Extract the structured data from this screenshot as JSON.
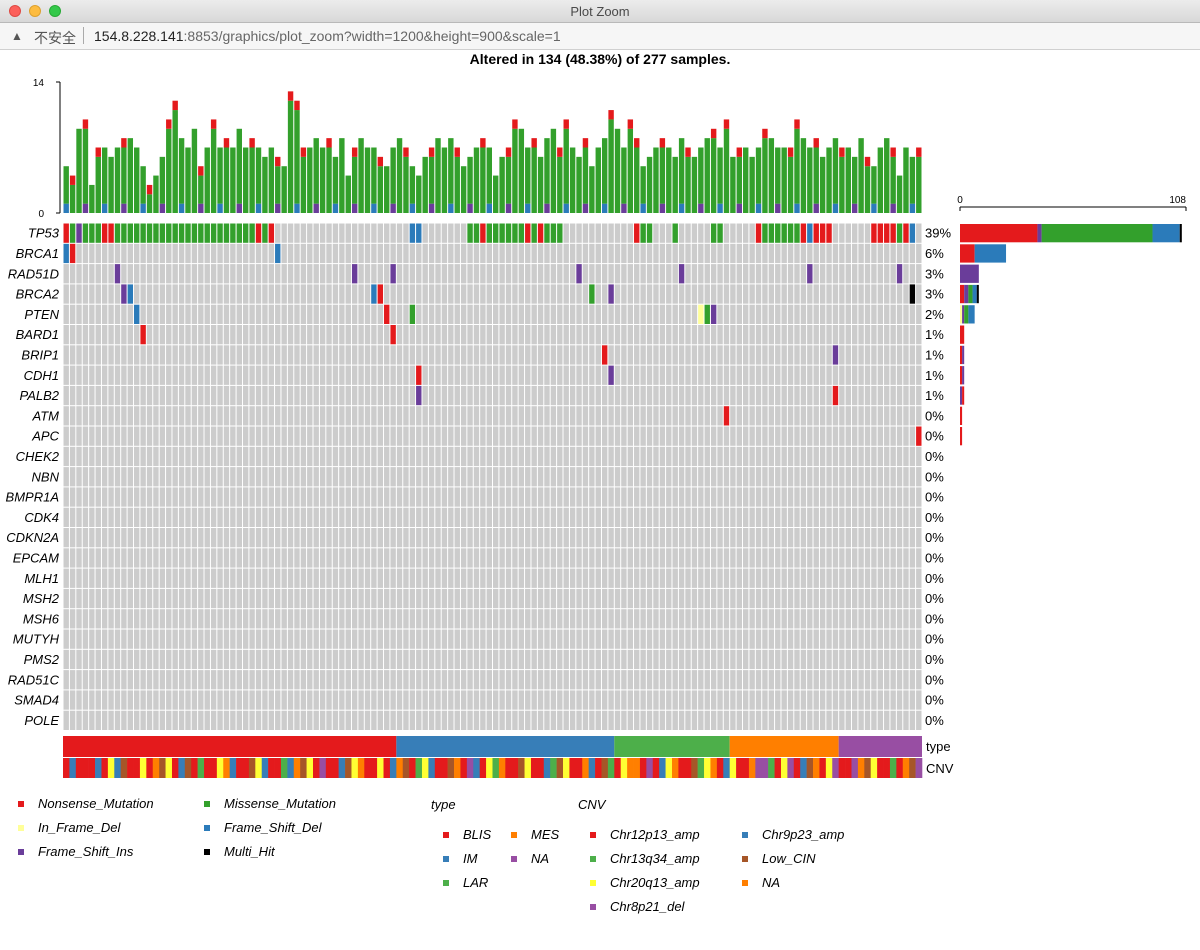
{
  "window": {
    "title": "Plot Zoom"
  },
  "address_bar": {
    "security_label": "不安全",
    "host": "154.8.228.141",
    "path": ":8853/graphics/plot_zoom?width=1200&height=900&scale=1"
  },
  "chart_data": {
    "type": "heatmap",
    "title": "Altered in 134 (48.38%) of 277 samples.",
    "top_axis": {
      "min": 0,
      "max": 14,
      "ticks": [
        "0",
        "14"
      ]
    },
    "right_axis": {
      "min": 0,
      "max": 108,
      "ticks": [
        "0",
        "108"
      ]
    },
    "n_columns": 134,
    "classes": [
      "Nonsense_Mutation",
      "Missense_Mutation",
      "In_Frame_Del",
      "Frame_Shift_Del",
      "Frame_Shift_Ins",
      "Multi_Hit"
    ],
    "colors": {
      "Nonsense_Mutation": "#e41a1c",
      "Missense_Mutation": "#33a02c",
      "In_Frame_Del": "#ffff99",
      "Frame_Shift_Del": "#2b7bba",
      "Frame_Shift_Ins": "#6a3d9a",
      "Multi_Hit": "#000000",
      "none": "#cccccc"
    },
    "genes": [
      {
        "name": "TP53",
        "pct": "39%",
        "cells": "NMMSMMMMMMMNNNMMMMMNMNMMMMMMMMMMMMMMMMMMMMMMMMMMMMMMNMNNMMNM.......................................DD.............MMNMNNHMMMMMMMMMMSNMMNMMNMMMM....................N.MMM.....NM..........MMM.........NNMMMMMMMMMMMMNDNNNNDNN..........NNMNNDNNMNNNDD..",
        "bar": [
          {
            "cls": "Nonsense_Mutation",
            "value": 37
          },
          {
            "cls": "Frame_Shift_Ins",
            "value": 2
          },
          {
            "cls": "Missense_Mutation",
            "value": 53
          },
          {
            "cls": "Frame_Shift_Del",
            "value": 13
          },
          {
            "cls": "Multi_Hit",
            "value": 1
          }
        ]
      },
      {
        "name": "BRCA1",
        "pct": "6%",
        "cells": "DDDDDDDNNNDD.......................................DD..............................D.........................................................................................................................................................DD.........................NN..........................................................................................................................................................................................................................................................................................................................................................................................................................................................................................................................................................................................................................................................................................................................D",
        "bar": [
          {
            "cls": "Nonsense_Mutation",
            "value": 7
          },
          {
            "cls": "Frame_Shift_Del",
            "value": 15
          }
        ]
      },
      {
        "name": "RAD51D",
        "pct": "3%",
        "cells": "",
        "bar": [
          {
            "cls": "Frame_Shift_Ins",
            "value": 9
          }
        ]
      },
      {
        "name": "BRCA2",
        "pct": "3%",
        "cells": "",
        "bar": [
          {
            "cls": "Nonsense_Mutation",
            "value": 2
          },
          {
            "cls": "Frame_Shift_Ins",
            "value": 2
          },
          {
            "cls": "Missense_Mutation",
            "value": 2
          },
          {
            "cls": "Frame_Shift_Del",
            "value": 2
          },
          {
            "cls": "Multi_Hit",
            "value": 1
          }
        ]
      },
      {
        "name": "PTEN",
        "pct": "2%",
        "cells": "",
        "bar": [
          {
            "cls": "In_Frame_Del",
            "value": 1
          },
          {
            "cls": "Frame_Shift_Ins",
            "value": 1
          },
          {
            "cls": "Missense_Mutation",
            "value": 2
          },
          {
            "cls": "Frame_Shift_Del",
            "value": 3
          }
        ]
      },
      {
        "name": "BARD1",
        "pct": "1%",
        "cells": "",
        "bar": [
          {
            "cls": "Nonsense_Mutation",
            "value": 2
          }
        ]
      },
      {
        "name": "BRIP1",
        "pct": "1%",
        "cells": "",
        "bar": [
          {
            "cls": "Nonsense_Mutation",
            "value": 1
          },
          {
            "cls": "Frame_Shift_Ins",
            "value": 1
          }
        ]
      },
      {
        "name": "CDH1",
        "pct": "1%",
        "cells": "",
        "bar": [
          {
            "cls": "Nonsense_Mutation",
            "value": 1
          },
          {
            "cls": "Frame_Shift_Ins",
            "value": 1
          }
        ]
      },
      {
        "name": "PALB2",
        "pct": "1%",
        "cells": "",
        "bar": [
          {
            "cls": "Frame_Shift_Ins",
            "value": 1
          },
          {
            "cls": "Nonsense_Mutation",
            "value": 1
          }
        ]
      },
      {
        "name": "ATM",
        "pct": "0%",
        "cells": "",
        "bar": [
          {
            "cls": "Nonsense_Mutation",
            "value": 1
          }
        ]
      },
      {
        "name": "APC",
        "pct": "0%",
        "cells": "",
        "bar": [
          {
            "cls": "Nonsense_Mutation",
            "value": 1
          }
        ]
      },
      {
        "name": "CHEK2",
        "pct": "0%",
        "cells": "",
        "bar": []
      },
      {
        "name": "NBN",
        "pct": "0%",
        "cells": "",
        "bar": []
      },
      {
        "name": "BMPR1A",
        "pct": "0%",
        "cells": "",
        "bar": []
      },
      {
        "name": "CDK4",
        "pct": "0%",
        "cells": "",
        "bar": []
      },
      {
        "name": "CDKN2A",
        "pct": "0%",
        "cells": "",
        "bar": []
      },
      {
        "name": "EPCAM",
        "pct": "0%",
        "cells": "",
        "bar": []
      },
      {
        "name": "MLH1",
        "pct": "0%",
        "cells": "",
        "bar": []
      },
      {
        "name": "MSH2",
        "pct": "0%",
        "cells": "",
        "bar": []
      },
      {
        "name": "MSH6",
        "pct": "0%",
        "cells": "",
        "bar": []
      },
      {
        "name": "MUTYH",
        "pct": "0%",
        "cells": "",
        "bar": []
      },
      {
        "name": "PMS2",
        "pct": "0%",
        "cells": "",
        "bar": []
      },
      {
        "name": "RAD51C",
        "pct": "0%",
        "cells": "",
        "bar": []
      },
      {
        "name": "SMAD4",
        "pct": "0%",
        "cells": "",
        "bar": []
      },
      {
        "name": "POLE",
        "pct": "0%",
        "cells": "",
        "bar": []
      }
    ],
    "sparse_cells": [
      {
        "gene": "RAD51D",
        "cols": [
          8,
          45,
          51,
          80,
          96,
          116,
          130
        ],
        "cls": "Frame_Shift_Ins"
      },
      {
        "gene": "BRCA2",
        "cols": [
          9
        ],
        "cls": "Frame_Shift_Ins"
      },
      {
        "gene": "BRCA2",
        "cols": [
          10,
          48
        ],
        "cls": "Frame_Shift_Del"
      },
      {
        "gene": "BRCA2",
        "cols": [
          49
        ],
        "cls": "Nonsense_Mutation"
      },
      {
        "gene": "BRCA2",
        "cols": [
          82
        ],
        "cls": "Missense_Mutation"
      },
      {
        "gene": "BRCA2",
        "cols": [
          85
        ],
        "cls": "Frame_Shift_Ins"
      },
      {
        "gene": "BRCA2",
        "cols": [
          132
        ],
        "cls": "Multi_Hit"
      },
      {
        "gene": "PTEN",
        "cols": [
          11
        ],
        "cls": "Frame_Shift_Del"
      },
      {
        "gene": "PTEN",
        "cols": [
          50
        ],
        "cls": "Nonsense_Mutation"
      },
      {
        "gene": "PTEN",
        "cols": [
          54
        ],
        "cls": "Missense_Mutation"
      },
      {
        "gene": "PTEN",
        "cols": [
          99
        ],
        "cls": "In_Frame_Del"
      },
      {
        "gene": "PTEN",
        "cols": [
          100
        ],
        "cls": "Missense_Mutation"
      },
      {
        "gene": "PTEN",
        "cols": [
          101
        ],
        "cls": "Frame_Shift_Ins"
      },
      {
        "gene": "BARD1",
        "cols": [
          12,
          51
        ],
        "cls": "Nonsense_Mutation"
      },
      {
        "gene": "BRIP1",
        "cols": [
          84
        ],
        "cls": "Nonsense_Mutation"
      },
      {
        "gene": "BRIP1",
        "cols": [
          120
        ],
        "cls": "Frame_Shift_Ins"
      },
      {
        "gene": "CDH1",
        "cols": [
          55
        ],
        "cls": "Nonsense_Mutation"
      },
      {
        "gene": "CDH1",
        "cols": [
          85
        ],
        "cls": "Frame_Shift_Ins"
      },
      {
        "gene": "PALB2",
        "cols": [
          55
        ],
        "cls": "Frame_Shift_Ins"
      },
      {
        "gene": "PALB2",
        "cols": [
          120
        ],
        "cls": "Nonsense_Mutation"
      },
      {
        "gene": "ATM",
        "cols": [
          103
        ],
        "cls": "Nonsense_Mutation"
      },
      {
        "gene": "APC",
        "cols": [
          133
        ],
        "cls": "Nonsense_Mutation"
      }
    ],
    "top_bars_total": [
      5,
      4,
      9,
      10,
      3,
      7,
      7,
      6,
      7,
      8,
      8,
      7,
      5,
      3,
      4,
      6,
      10,
      12,
      8,
      7,
      9,
      5,
      7,
      10,
      7,
      8,
      7,
      9,
      7,
      8,
      7,
      6,
      7,
      6,
      5,
      13,
      12,
      7,
      7,
      8,
      7,
      8,
      6,
      8,
      4,
      7,
      8,
      7,
      7,
      6,
      5,
      7,
      8,
      7,
      5,
      4,
      6,
      7,
      8,
      7,
      8,
      7,
      5,
      6,
      7,
      8,
      7,
      4,
      6,
      7,
      10,
      9,
      7,
      8,
      6,
      8,
      9,
      7,
      10,
      7,
      6,
      8,
      5,
      7,
      8,
      11,
      9,
      7,
      10,
      8,
      5,
      6,
      7,
      8,
      7,
      6,
      8,
      7,
      6,
      7,
      8,
      9,
      7,
      10,
      6,
      7,
      7,
      6,
      7,
      9,
      8,
      7,
      7,
      7,
      10,
      8,
      7,
      8,
      6,
      7,
      8,
      7,
      7,
      6,
      8,
      6,
      5,
      7,
      8,
      7,
      4,
      7,
      6,
      7
    ],
    "annotation_rows": [
      "type",
      "CNV"
    ],
    "type_segments": [
      {
        "label": "BLIS",
        "from": 0,
        "to": 52
      },
      {
        "label": "IM",
        "from": 52,
        "to": 86
      },
      {
        "label": "LAR",
        "from": 86,
        "to": 104
      },
      {
        "label": "MES",
        "from": 104,
        "to": 121
      },
      {
        "label": "NA",
        "from": 121,
        "to": 134
      }
    ],
    "type_colors": {
      "BLIS": "#e41a1c",
      "IM": "#377eb8",
      "LAR": "#4daf4a",
      "MES": "#ff7f00",
      "NA": "#984ea3"
    },
    "cnv_colors": {
      "Chr12p13_amp": "#e41a1c",
      "Chr13q34_amp": "#4daf4a",
      "Chr20q13_amp": "#ffff33",
      "Chr8p21_del": "#984ea3",
      "Chr9p23_amp": "#377eb8",
      "Low_CIN": "#a65628",
      "NA": "#ff7f00"
    },
    "cnv_sequence": "ABAAABAEBDAAEAFDEABDACAAEFBAADEBAACBFDEAGAABDEFAAEABFDACEBAADFAGBAECFAADEAABCDEAAFBADCAEFFAGABEFAADCEFABEAAFGGCAEGABDFAEGAAGFDEAACAFDG",
    "legend_mutation": [
      {
        "label": "Nonsense_Mutation",
        "cls": "Nonsense_Mutation"
      },
      {
        "label": "Missense_Mutation",
        "cls": "Missense_Mutation"
      },
      {
        "label": "In_Frame_Del",
        "cls": "In_Frame_Del"
      },
      {
        "label": "Frame_Shift_Del",
        "cls": "Frame_Shift_Del"
      },
      {
        "label": "Frame_Shift_Ins",
        "cls": "Frame_Shift_Ins"
      },
      {
        "label": "Multi_Hit",
        "cls": "Multi_Hit"
      }
    ],
    "legend_type_title": "type",
    "legend_type": [
      "BLIS",
      "MES",
      "IM",
      "NA",
      "LAR"
    ],
    "legend_cnv_title": "CNV",
    "legend_cnv": [
      "Chr12p13_amp",
      "Chr9p23_amp",
      "Chr13q34_amp",
      "Low_CIN",
      "Chr20q13_amp",
      "NA",
      "Chr8p21_del"
    ]
  }
}
